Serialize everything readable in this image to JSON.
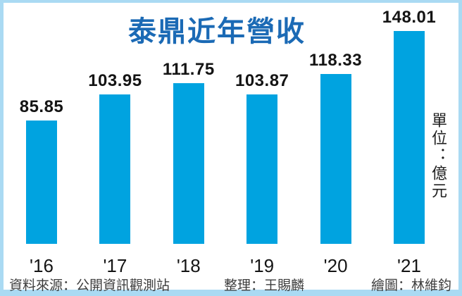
{
  "chart_data": {
    "type": "bar",
    "title": "泰鼎近年營收",
    "categories": [
      "'16",
      "'17",
      "'18",
      "'19",
      "'20",
      "'21"
    ],
    "values": [
      85.85,
      103.95,
      111.75,
      103.87,
      118.33,
      148.01
    ],
    "value_labels": [
      "85.85",
      "103.95",
      "111.75",
      "103.87",
      "118.33",
      "148.01"
    ],
    "unit_label": "單位：億元",
    "xlabel": "",
    "ylabel": "",
    "ylim": [
      0,
      155
    ],
    "grid": false,
    "legend": false,
    "bar_color": "#00a3e0",
    "title_color": "#1b6ab5",
    "frame_color": "#aadaf3"
  },
  "footer": {
    "source": "資料來源：公開資訊觀測站",
    "compiled": "整理：王賜麟",
    "drawn": "繪圖：林維鈞"
  }
}
